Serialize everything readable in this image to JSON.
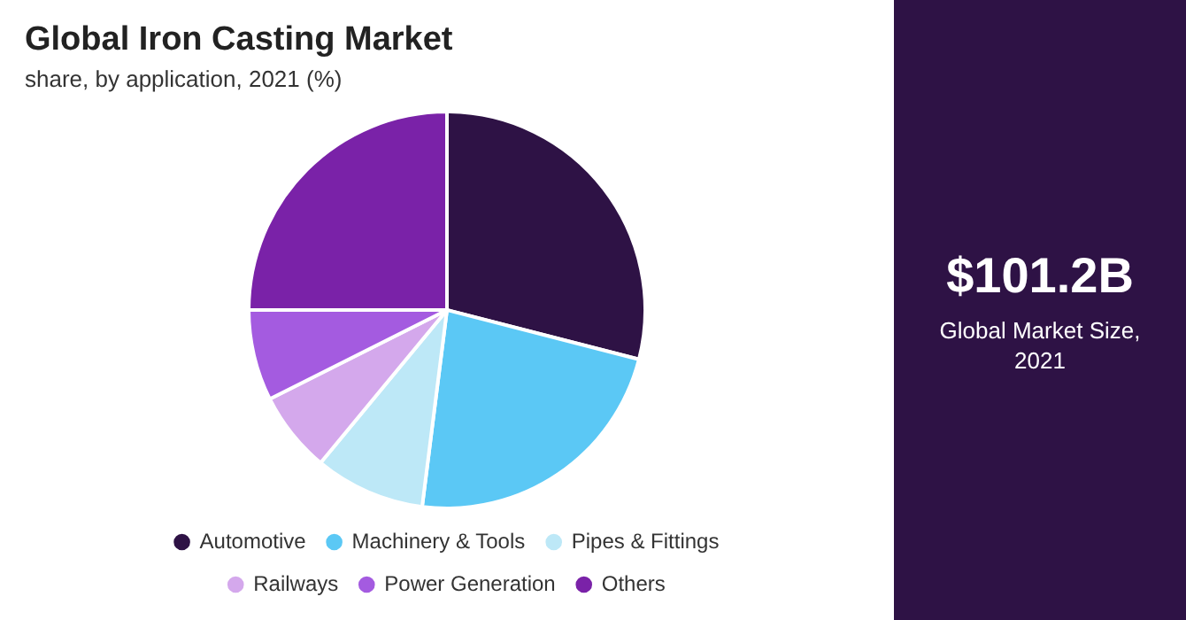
{
  "chart_data": {
    "type": "pie",
    "title": "Global Iron Casting Market",
    "subtitle": "share, by application, 2021 (%)",
    "categories": [
      "Automotive",
      "Machinery & Tools",
      "Pipes & Fittings",
      "Railways",
      "Power Generation",
      "Others"
    ],
    "values": [
      29,
      23,
      9,
      6.6,
      7.4,
      25
    ],
    "colors": [
      "#2e1245",
      "#5bc8f5",
      "#bde8f7",
      "#d4a8ec",
      "#a45be0",
      "#7a22a8"
    ],
    "legend": "bottom",
    "annotations": [
      "$101.2B",
      "Global Market Size, 2021"
    ]
  }
}
